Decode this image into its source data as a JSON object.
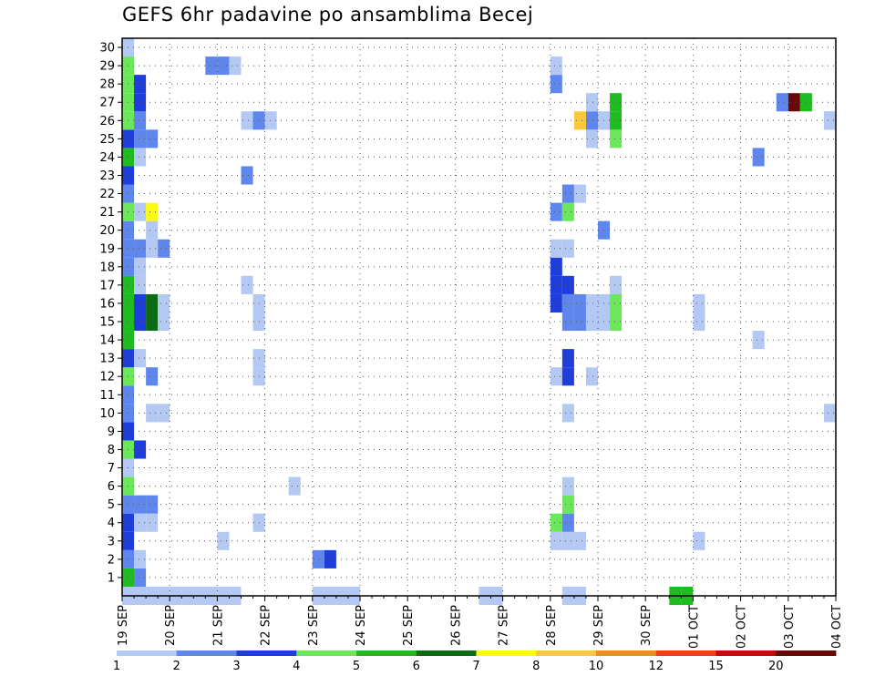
{
  "chart_data": {
    "type": "heatmap",
    "title": "GEFS 6hr padavine po ansamblima Becej",
    "xlabel": "",
    "ylabel": "",
    "x_ticks": [
      "19 SEP",
      "20 SEP",
      "21 SEP",
      "22 SEP",
      "23 SEP",
      "24 SEP",
      "25 SEP",
      "26 SEP",
      "27 SEP",
      "28 SEP",
      "29 SEP",
      "30 SEP",
      "01 OCT",
      "02 OCT",
      "03 OCT",
      "04 OCT"
    ],
    "y_ticks": [
      1,
      2,
      3,
      4,
      5,
      6,
      7,
      8,
      9,
      10,
      11,
      12,
      13,
      14,
      15,
      16,
      17,
      18,
      19,
      20,
      21,
      22,
      23,
      24,
      25,
      26,
      27,
      28,
      29,
      30
    ],
    "x_range": [
      "19 SEP 00Z",
      "04 OCT 00Z"
    ],
    "y_range": [
      0,
      30
    ],
    "time_step_hours": 6,
    "grid": "dotted",
    "colorbar": {
      "position": "bottom",
      "labels": [
        "1",
        "2",
        "3",
        "4",
        "5",
        "6",
        "7",
        "8",
        "10",
        "12",
        "15",
        "20"
      ],
      "colors": [
        "#b4c8f4",
        "#5e86ec",
        "#1e3ddc",
        "#6ae85a",
        "#1ebc1e",
        "#0c6c14",
        "#fafa14",
        "#fac83c",
        "#f48c1c",
        "#e8460c",
        "#c00c0c",
        "#6a0808"
      ]
    },
    "cells": [
      {
        "m": 0,
        "t": 0,
        "v": 1
      },
      {
        "m": 0,
        "t": 1,
        "v": 1
      },
      {
        "m": 0,
        "t": 2,
        "v": 1
      },
      {
        "m": 0,
        "t": 3,
        "v": 1
      },
      {
        "m": 0,
        "t": 4,
        "v": 1
      },
      {
        "m": 0,
        "t": 5,
        "v": 1
      },
      {
        "m": 0,
        "t": 6,
        "v": 1
      },
      {
        "m": 0,
        "t": 7,
        "v": 1
      },
      {
        "m": 0,
        "t": 8,
        "v": 1
      },
      {
        "m": 0,
        "t": 9,
        "v": 1
      },
      {
        "m": 0,
        "t": 16,
        "v": 1
      },
      {
        "m": 0,
        "t": 17,
        "v": 1
      },
      {
        "m": 0,
        "t": 18,
        "v": 1
      },
      {
        "m": 0,
        "t": 19,
        "v": 1
      },
      {
        "m": 0,
        "t": 30,
        "v": 1
      },
      {
        "m": 0,
        "t": 31,
        "v": 1
      },
      {
        "m": 0,
        "t": 37,
        "v": 1
      },
      {
        "m": 0,
        "t": 38,
        "v": 1
      },
      {
        "m": 0,
        "t": 46,
        "v": 5
      },
      {
        "m": 0,
        "t": 47,
        "v": 5
      },
      {
        "m": 1,
        "t": 0,
        "v": 5
      },
      {
        "m": 1,
        "t": 1,
        "v": 2
      },
      {
        "m": 2,
        "t": 0,
        "v": 2
      },
      {
        "m": 2,
        "t": 1,
        "v": 1
      },
      {
        "m": 2,
        "t": 16,
        "v": 2
      },
      {
        "m": 2,
        "t": 17,
        "v": 3
      },
      {
        "m": 3,
        "t": 0,
        "v": 3
      },
      {
        "m": 3,
        "t": 8,
        "v": 1
      },
      {
        "m": 3,
        "t": 36,
        "v": 1
      },
      {
        "m": 3,
        "t": 37,
        "v": 1
      },
      {
        "m": 3,
        "t": 38,
        "v": 1
      },
      {
        "m": 3,
        "t": 48,
        "v": 1
      },
      {
        "m": 4,
        "t": 0,
        "v": 3
      },
      {
        "m": 4,
        "t": 1,
        "v": 1
      },
      {
        "m": 4,
        "t": 2,
        "v": 1
      },
      {
        "m": 4,
        "t": 11,
        "v": 1
      },
      {
        "m": 4,
        "t": 36,
        "v": 4
      },
      {
        "m": 4,
        "t": 37,
        "v": 2
      },
      {
        "m": 5,
        "t": 0,
        "v": 2
      },
      {
        "m": 5,
        "t": 1,
        "v": 2
      },
      {
        "m": 5,
        "t": 2,
        "v": 2
      },
      {
        "m": 5,
        "t": 37,
        "v": 4
      },
      {
        "m": 6,
        "t": 0,
        "v": 4
      },
      {
        "m": 6,
        "t": 14,
        "v": 1
      },
      {
        "m": 6,
        "t": 37,
        "v": 1
      },
      {
        "m": 7,
        "t": 0,
        "v": 1
      },
      {
        "m": 8,
        "t": 0,
        "v": 4
      },
      {
        "m": 8,
        "t": 1,
        "v": 3
      },
      {
        "m": 9,
        "t": 0,
        "v": 3
      },
      {
        "m": 10,
        "t": 0,
        "v": 2
      },
      {
        "m": 10,
        "t": 2,
        "v": 1
      },
      {
        "m": 10,
        "t": 3,
        "v": 1
      },
      {
        "m": 10,
        "t": 37,
        "v": 1
      },
      {
        "m": 10,
        "t": 59,
        "v": 1
      },
      {
        "m": 11,
        "t": 0,
        "v": 2
      },
      {
        "m": 12,
        "t": 0,
        "v": 4
      },
      {
        "m": 12,
        "t": 2,
        "v": 2
      },
      {
        "m": 12,
        "t": 11,
        "v": 1
      },
      {
        "m": 12,
        "t": 36,
        "v": 1
      },
      {
        "m": 12,
        "t": 37,
        "v": 3
      },
      {
        "m": 12,
        "t": 39,
        "v": 1
      },
      {
        "m": 13,
        "t": 0,
        "v": 3
      },
      {
        "m": 13,
        "t": 1,
        "v": 1
      },
      {
        "m": 13,
        "t": 11,
        "v": 1
      },
      {
        "m": 13,
        "t": 37,
        "v": 3
      },
      {
        "m": 14,
        "t": 0,
        "v": 5
      },
      {
        "m": 14,
        "t": 53,
        "v": 1
      },
      {
        "m": 15,
        "t": 0,
        "v": 5
      },
      {
        "m": 15,
        "t": 1,
        "v": 3
      },
      {
        "m": 15,
        "t": 2,
        "v": 6
      },
      {
        "m": 15,
        "t": 3,
        "v": 1
      },
      {
        "m": 15,
        "t": 11,
        "v": 1
      },
      {
        "m": 15,
        "t": 37,
        "v": 2
      },
      {
        "m": 15,
        "t": 38,
        "v": 2
      },
      {
        "m": 15,
        "t": 39,
        "v": 1
      },
      {
        "m": 15,
        "t": 40,
        "v": 1
      },
      {
        "m": 15,
        "t": 41,
        "v": 4
      },
      {
        "m": 15,
        "t": 48,
        "v": 1
      },
      {
        "m": 16,
        "t": 0,
        "v": 5
      },
      {
        "m": 16,
        "t": 1,
        "v": 3
      },
      {
        "m": 16,
        "t": 2,
        "v": 6
      },
      {
        "m": 16,
        "t": 3,
        "v": 1
      },
      {
        "m": 16,
        "t": 11,
        "v": 1
      },
      {
        "m": 16,
        "t": 36,
        "v": 3
      },
      {
        "m": 16,
        "t": 37,
        "v": 2
      },
      {
        "m": 16,
        "t": 38,
        "v": 2
      },
      {
        "m": 16,
        "t": 39,
        "v": 1
      },
      {
        "m": 16,
        "t": 40,
        "v": 1
      },
      {
        "m": 16,
        "t": 41,
        "v": 4
      },
      {
        "m": 16,
        "t": 48,
        "v": 1
      },
      {
        "m": 17,
        "t": 0,
        "v": 5
      },
      {
        "m": 17,
        "t": 1,
        "v": 1
      },
      {
        "m": 17,
        "t": 10,
        "v": 1
      },
      {
        "m": 17,
        "t": 36,
        "v": 3
      },
      {
        "m": 17,
        "t": 37,
        "v": 3
      },
      {
        "m": 17,
        "t": 41,
        "v": 1
      },
      {
        "m": 18,
        "t": 0,
        "v": 2
      },
      {
        "m": 18,
        "t": 1,
        "v": 1
      },
      {
        "m": 18,
        "t": 36,
        "v": 3
      },
      {
        "m": 19,
        "t": 0,
        "v": 2
      },
      {
        "m": 19,
        "t": 1,
        "v": 2
      },
      {
        "m": 19,
        "t": 2,
        "v": 1
      },
      {
        "m": 19,
        "t": 3,
        "v": 2
      },
      {
        "m": 19,
        "t": 36,
        "v": 1
      },
      {
        "m": 19,
        "t": 37,
        "v": 1
      },
      {
        "m": 20,
        "t": 0,
        "v": 2
      },
      {
        "m": 20,
        "t": 2,
        "v": 1
      },
      {
        "m": 20,
        "t": 40,
        "v": 2
      },
      {
        "m": 21,
        "t": 0,
        "v": 4
      },
      {
        "m": 21,
        "t": 1,
        "v": 1
      },
      {
        "m": 21,
        "t": 2,
        "v": 7
      },
      {
        "m": 21,
        "t": 36,
        "v": 2
      },
      {
        "m": 21,
        "t": 37,
        "v": 4
      },
      {
        "m": 22,
        "t": 0,
        "v": 2
      },
      {
        "m": 22,
        "t": 37,
        "v": 2
      },
      {
        "m": 22,
        "t": 38,
        "v": 1
      },
      {
        "m": 23,
        "t": 0,
        "v": 3
      },
      {
        "m": 23,
        "t": 10,
        "v": 2
      },
      {
        "m": 24,
        "t": 0,
        "v": 5
      },
      {
        "m": 24,
        "t": 1,
        "v": 1
      },
      {
        "m": 24,
        "t": 53,
        "v": 2
      },
      {
        "m": 25,
        "t": 0,
        "v": 3
      },
      {
        "m": 25,
        "t": 1,
        "v": 2
      },
      {
        "m": 25,
        "t": 2,
        "v": 2
      },
      {
        "m": 25,
        "t": 39,
        "v": 1
      },
      {
        "m": 25,
        "t": 41,
        "v": 4
      },
      {
        "m": 26,
        "t": 0,
        "v": 4
      },
      {
        "m": 26,
        "t": 1,
        "v": 2
      },
      {
        "m": 26,
        "t": 10,
        "v": 1
      },
      {
        "m": 26,
        "t": 11,
        "v": 2
      },
      {
        "m": 26,
        "t": 12,
        "v": 1
      },
      {
        "m": 26,
        "t": 38,
        "v": 8
      },
      {
        "m": 26,
        "t": 39,
        "v": 2
      },
      {
        "m": 26,
        "t": 40,
        "v": 1
      },
      {
        "m": 26,
        "t": 41,
        "v": 5
      },
      {
        "m": 26,
        "t": 40,
        "v": 1
      },
      {
        "m": 26,
        "t": 59,
        "v": 1
      },
      {
        "m": 26,
        "t": 59,
        "v": 1
      },
      {
        "m": 27,
        "t": 0,
        "v": 4
      },
      {
        "m": 27,
        "t": 1,
        "v": 3
      },
      {
        "m": 27,
        "t": 39,
        "v": 1
      },
      {
        "m": 27,
        "t": 41,
        "v": 5
      },
      {
        "m": 27,
        "t": 55,
        "v": 2
      },
      {
        "m": 27,
        "t": 56,
        "v": 20
      },
      {
        "m": 27,
        "t": 57,
        "v": 5
      },
      {
        "m": 28,
        "t": 0,
        "v": 4
      },
      {
        "m": 28,
        "t": 1,
        "v": 3
      },
      {
        "m": 28,
        "t": 36,
        "v": 2
      },
      {
        "m": 29,
        "t": 0,
        "v": 4
      },
      {
        "m": 29,
        "t": 7,
        "v": 2
      },
      {
        "m": 29,
        "t": 8,
        "v": 2
      },
      {
        "m": 29,
        "t": 9,
        "v": 1
      },
      {
        "m": 29,
        "t": 36,
        "v": 1
      },
      {
        "m": 30,
        "t": 0,
        "v": 1
      }
    ]
  }
}
